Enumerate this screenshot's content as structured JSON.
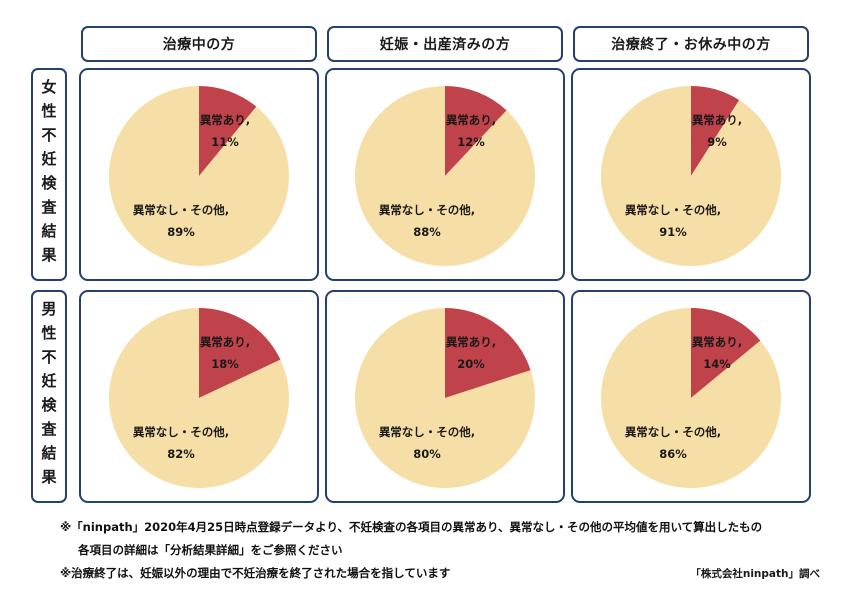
{
  "columns": [
    "治療中の方",
    "妊娠・出産済みの方",
    "治療終了・お休み中の方"
  ],
  "rows": [
    "女性不妊検査結果",
    "男性不妊検査結果"
  ],
  "colors": {
    "abnormal": "#c0424a",
    "normal": "#f5dfa6",
    "border": "#24406e",
    "text": "#1a1a1a"
  },
  "chart_data": [
    {
      "type": "pie",
      "row": "女性不妊検査結果",
      "column": "治療中の方",
      "slices": [
        {
          "label": "異常あり",
          "value": 11,
          "value_label": "11%"
        },
        {
          "label": "異常なし・その他",
          "value": 89,
          "value_label": "89%"
        }
      ]
    },
    {
      "type": "pie",
      "row": "女性不妊検査結果",
      "column": "妊娠・出産済みの方",
      "slices": [
        {
          "label": "異常あり",
          "value": 12,
          "value_label": "12%"
        },
        {
          "label": "異常なし・その他",
          "value": 88,
          "value_label": "88%"
        }
      ]
    },
    {
      "type": "pie",
      "row": "女性不妊検査結果",
      "column": "治療終了・お休み中の方",
      "slices": [
        {
          "label": "異常あり",
          "value": 9,
          "value_label": "9%"
        },
        {
          "label": "異常なし・その他",
          "value": 91,
          "value_label": "91%"
        }
      ]
    },
    {
      "type": "pie",
      "row": "男性不妊検査結果",
      "column": "治療中の方",
      "slices": [
        {
          "label": "異常あり",
          "value": 18,
          "value_label": "18%"
        },
        {
          "label": "異常なし・その他",
          "value": 82,
          "value_label": "82%"
        }
      ]
    },
    {
      "type": "pie",
      "row": "男性不妊検査結果",
      "column": "妊娠・出産済みの方",
      "slices": [
        {
          "label": "異常あり",
          "value": 20,
          "value_label": "20%"
        },
        {
          "label": "異常なし・その他",
          "value": 80,
          "value_label": "80%"
        }
      ]
    },
    {
      "type": "pie",
      "row": "男性不妊検査結果",
      "column": "治療終了・お休み中の方",
      "slices": [
        {
          "label": "異常あり",
          "value": 14,
          "value_label": "14%"
        },
        {
          "label": "異常なし・その他",
          "value": 86,
          "value_label": "86%"
        }
      ]
    }
  ],
  "notes": {
    "line1": "※「ninpath」2020年4月25日時点登録データより、不妊検査の各項目の異常あり、異常なし・その他の平均値を用いて算出したもの",
    "line2": "各項目の詳細は「分析結果詳細」をご参照ください",
    "line3": "※治療終了は、妊娠以外の理由で不妊治療を終了された場合を指しています",
    "credit": "「株式会社ninpath」調べ"
  }
}
